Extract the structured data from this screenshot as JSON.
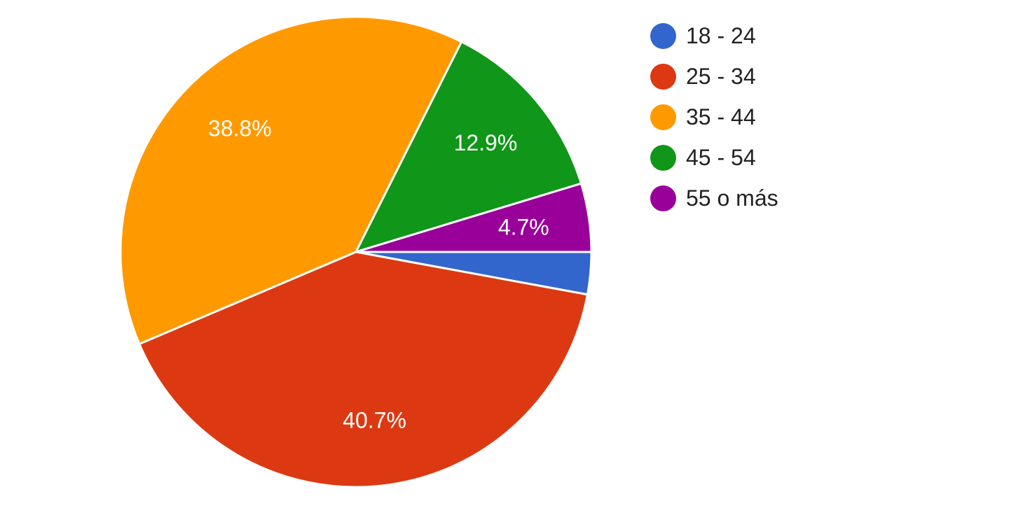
{
  "chart_data": {
    "type": "pie",
    "title": "",
    "legend_position": "right",
    "slices": [
      {
        "label": "18 - 24",
        "value": 2.9,
        "color": "#3366cc",
        "display": ""
      },
      {
        "label": "25 - 34",
        "value": 40.7,
        "color": "#dc3912",
        "display": "40.7%"
      },
      {
        "label": "35 - 44",
        "value": 38.8,
        "color": "#ff9900",
        "display": "38.8%"
      },
      {
        "label": "45 - 54",
        "value": 12.9,
        "color": "#109618",
        "display": "12.9%"
      },
      {
        "label": "55 o más",
        "value": 4.7,
        "color": "#990099",
        "display": "4.7%"
      }
    ]
  }
}
